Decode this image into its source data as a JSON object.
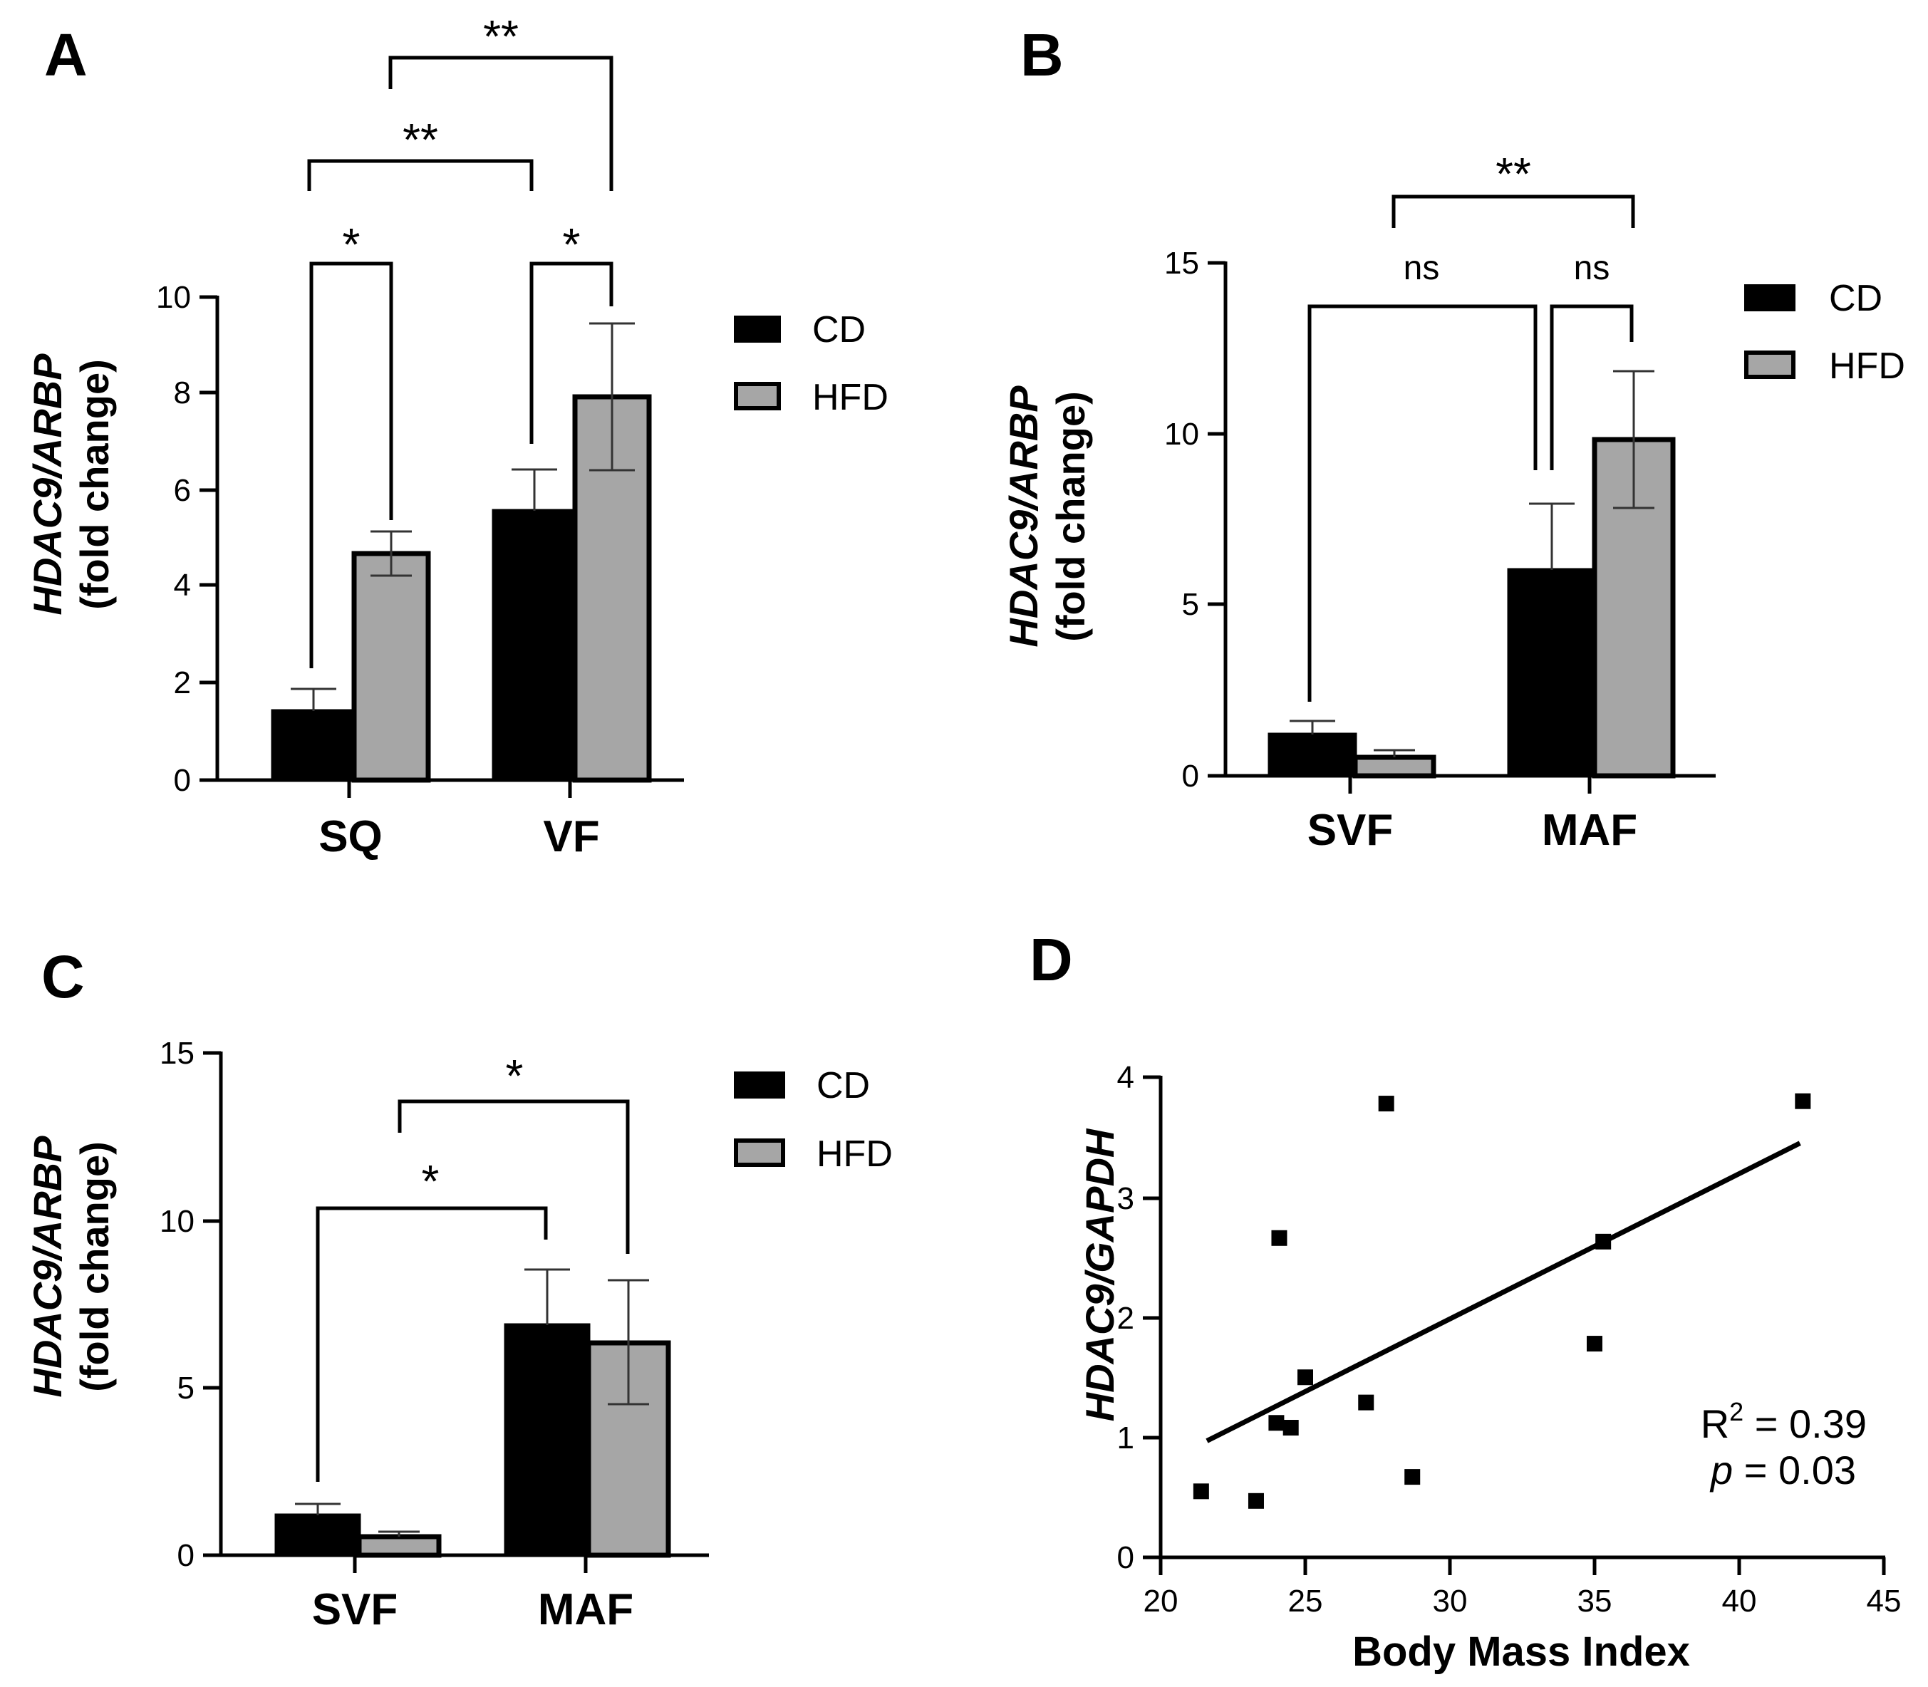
{
  "panels": {
    "A": {
      "letter": "A",
      "ylabel_italic": "HDAC9/ARBP",
      "ylabel_plain": "(fold change)",
      "yticks": [
        "0",
        "2",
        "4",
        "6",
        "8",
        "10"
      ],
      "legend": [
        "CD",
        "HFD"
      ],
      "categories": [
        "SQ",
        "VF"
      ],
      "brackets": [
        "*",
        "*",
        "**",
        "**"
      ]
    },
    "B": {
      "letter": "B",
      "ylabel_italic": "HDAC9/ARBP",
      "ylabel_plain": "(fold change)",
      "yticks": [
        "0",
        "5",
        "10",
        "15"
      ],
      "legend": [
        "CD",
        "HFD"
      ],
      "categories": [
        "SVF",
        "MAF"
      ],
      "brackets": [
        "ns",
        "ns",
        "**"
      ]
    },
    "C": {
      "letter": "C",
      "ylabel_italic": "HDAC9/ARBP",
      "ylabel_plain": "(fold change)",
      "yticks": [
        "0",
        "5",
        "10",
        "15"
      ],
      "legend": [
        "CD",
        "HFD"
      ],
      "categories": [
        "SVF",
        "MAF"
      ],
      "brackets": [
        "*",
        "*"
      ]
    },
    "D": {
      "letter": "D",
      "ylabel_italic": "HDAC9/GAPDH",
      "xlabel": "Body Mass Index",
      "yticks": [
        "0",
        "1",
        "2",
        "3",
        "4"
      ],
      "xticks": [
        "20",
        "25",
        "30",
        "35",
        "40",
        "45"
      ],
      "r2_prefix": "R",
      "r2_sup": "2",
      "r2_value": " = 0.39",
      "p_symbol": "p",
      "p_value": " = 0.03"
    }
  },
  "chart_data": [
    {
      "panel": "A",
      "type": "bar",
      "categories": [
        "SQ",
        "VF"
      ],
      "series": [
        {
          "name": "CD",
          "values": [
            1.4,
            5.5
          ],
          "errors": [
            0.45,
            0.85
          ],
          "color": "#000000"
        },
        {
          "name": "HFD",
          "values": [
            4.65,
            7.95
          ],
          "errors": [
            0.45,
            1.5
          ],
          "color": "#a6a6a6"
        }
      ],
      "ylabel": "HDAC9/ARBP (fold change)",
      "ylim": [
        0,
        10
      ],
      "significance": [
        {
          "between": "SQ CD vs SQ HFD",
          "label": "*"
        },
        {
          "between": "VF CD vs VF HFD",
          "label": "*"
        },
        {
          "between": "SQ CD vs VF CD",
          "label": "**"
        },
        {
          "between": "SQ HFD vs VF HFD",
          "label": "**"
        }
      ]
    },
    {
      "panel": "B",
      "type": "bar",
      "categories": [
        "SVF",
        "MAF"
      ],
      "series": [
        {
          "name": "CD",
          "values": [
            1.2,
            6.05
          ],
          "errors": [
            0.4,
            1.95
          ],
          "color": "#000000"
        },
        {
          "name": "HFD",
          "values": [
            0.55,
            9.85
          ],
          "errors": [
            0.2,
            2.0
          ],
          "color": "#a6a6a6"
        }
      ],
      "ylabel": "HDAC9/ARBP (fold change)",
      "ylim": [
        0,
        15
      ],
      "significance": [
        {
          "between": "SVF CD vs MAF CD",
          "label": "ns"
        },
        {
          "between": "MAF CD vs MAF HFD",
          "label": "ns"
        },
        {
          "between": "SVF HFD vs MAF HFD",
          "label": "**"
        }
      ]
    },
    {
      "panel": "C",
      "type": "bar",
      "categories": [
        "SVF",
        "MAF"
      ],
      "series": [
        {
          "name": "CD",
          "values": [
            1.2,
            6.9
          ],
          "errors": [
            0.35,
            1.65
          ],
          "color": "#000000"
        },
        {
          "name": "HFD",
          "values": [
            0.55,
            6.35
          ],
          "errors": [
            0.15,
            1.85
          ],
          "color": "#a6a6a6"
        }
      ],
      "ylabel": "HDAC9/ARBP (fold change)",
      "ylim": [
        0,
        15
      ],
      "significance": [
        {
          "between": "SVF CD vs MAF CD",
          "label": "*"
        },
        {
          "between": "SVF HFD vs MAF HFD",
          "label": "*"
        }
      ]
    },
    {
      "panel": "D",
      "type": "scatter",
      "xlabel": "Body Mass Index",
      "ylabel": "HDAC9/GAPDH",
      "xlim": [
        20,
        45
      ],
      "ylim": [
        0,
        4
      ],
      "points": [
        [
          21.4,
          0.55
        ],
        [
          23.3,
          0.47
        ],
        [
          24.0,
          1.12
        ],
        [
          24.1,
          2.66
        ],
        [
          24.5,
          1.08
        ],
        [
          25.0,
          1.5
        ],
        [
          27.1,
          1.29
        ],
        [
          27.8,
          3.78
        ],
        [
          28.7,
          0.67
        ],
        [
          35.0,
          1.78
        ],
        [
          35.3,
          2.63
        ],
        [
          42.2,
          3.8
        ]
      ],
      "fit_line": {
        "x": [
          21.6,
          42.1
        ],
        "y": [
          0.97,
          3.45
        ]
      },
      "r_squared": 0.39,
      "p_value": 0.03
    }
  ]
}
